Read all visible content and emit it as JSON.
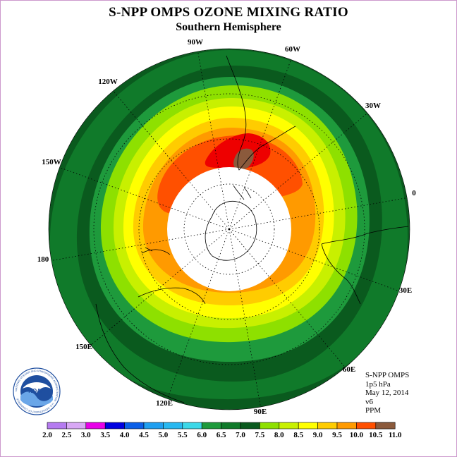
{
  "title": "S-NPP OMPS OZONE MIXING RATIO",
  "subtitle": "Southern Hemisphere",
  "longitude_labels": [
    "90W",
    "60W",
    "30W",
    "0",
    "30E",
    "60E",
    "90E",
    "120E",
    "150E",
    "180",
    "150W",
    "120W"
  ],
  "info": {
    "satellite": "S-NPP OMPS",
    "level": "1p5 hPa",
    "date": "May 12, 2014",
    "version": "v6",
    "units": "PPM"
  },
  "logo_text": {
    "name": "NOAA",
    "ring": "NATIONAL OCEANIC AND ATMOSPHERIC ADMINISTRATION · U.S. DEPARTMENT OF COMMERCE"
  },
  "colorbar": {
    "labels": [
      "2.0",
      "2.5",
      "3.0",
      "3.5",
      "4.0",
      "4.5",
      "5.0",
      "5.5",
      "6.0",
      "6.5",
      "7.0",
      "7.5",
      "8.0",
      "8.5",
      "9.0",
      "9.5",
      "10.0",
      "10.5",
      "11.0"
    ],
    "colors": [
      "#b57bf0",
      "#d8a8f5",
      "#e800e8",
      "#0000e0",
      "#0a5fe8",
      "#1f9ff0",
      "#28b8f0",
      "#3cd8e8",
      "#1e9a3c",
      "#107a2a",
      "#0a5a1e",
      "#8ee000",
      "#c8f000",
      "#ffff00",
      "#ffcc00",
      "#ff9a00",
      "#ff5000",
      "#ee0000",
      "#8b5a3c"
    ]
  },
  "colors": {
    "ring_dark": "#0a5a1e",
    "ring_mid": "#107a2a",
    "ring_green": "#1e9a3c",
    "ring_lime": "#8ee000",
    "ring_yellowgreen": "#c8f000",
    "ring_yellow": "#ffff00",
    "ring_gold": "#ffcc00",
    "ring_orange": "#ff9a00",
    "ring_redorange": "#ff5000",
    "ring_red": "#ee0000",
    "ring_brown": "#8b5a3c",
    "no_data": "#ffffff"
  }
}
